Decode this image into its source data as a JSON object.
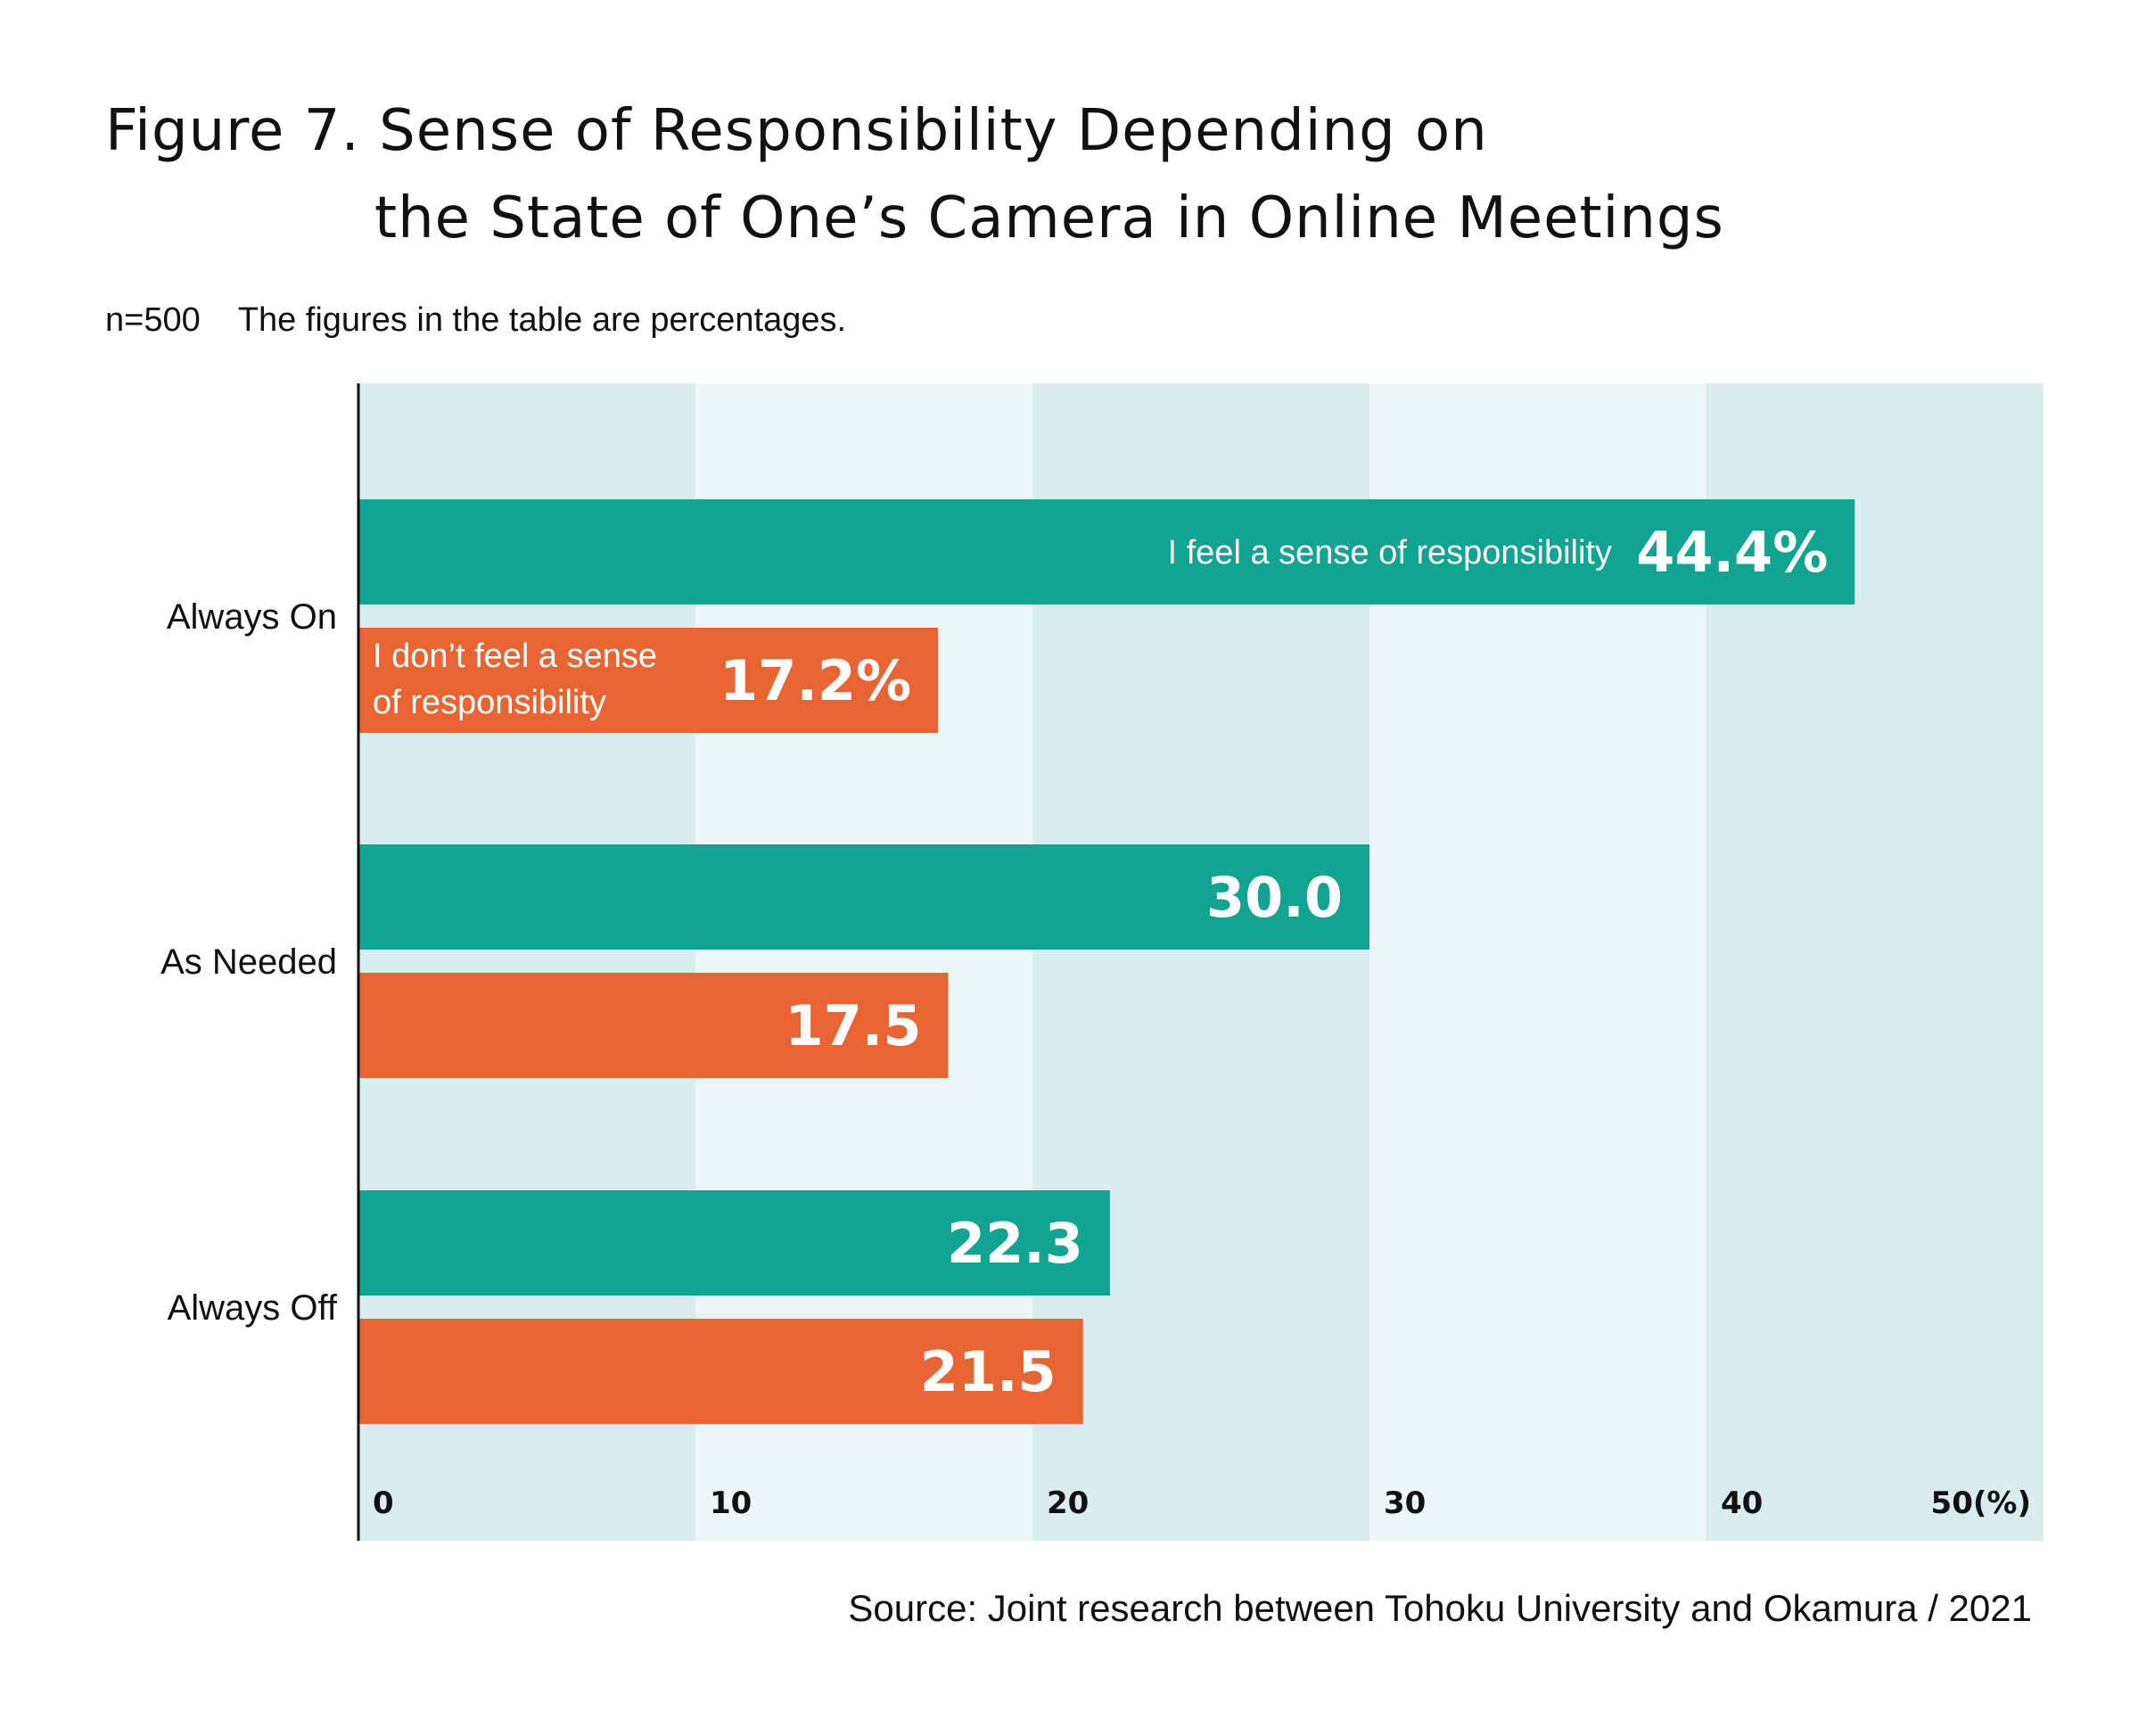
{
  "title": {
    "line1": "Figure 7. Sense of Responsibility Depending on",
    "line2": "the State of One’s Camera in Online Meetings"
  },
  "subtitle": {
    "n": "n=500",
    "note": "The figures in the table are percentages."
  },
  "source": "Source: Joint research between Tohoku University and Okamura / 2021",
  "colors": {
    "feel": "#12a490",
    "not_feel": "#e96433",
    "band_dark": "#daedee",
    "band_light": "#edf6f6",
    "axis": "#111111"
  },
  "chart_data": {
    "type": "bar",
    "orientation": "horizontal",
    "categories": [
      "Always On",
      "As Needed",
      "Always Off"
    ],
    "series": [
      {
        "name": "I feel a sense of responsibility",
        "values": [
          44.4,
          30.0,
          22.3
        ],
        "labels": [
          "44.4%",
          "30.0",
          "22.3"
        ]
      },
      {
        "name": "I don’t feel a sense of responsibility",
        "name_lines": [
          "I don’t feel a sense",
          "of responsibility"
        ],
        "values": [
          17.2,
          17.5,
          21.5
        ],
        "labels": [
          "17.2%",
          "17.5",
          "21.5"
        ]
      }
    ],
    "xlim": [
      0,
      50
    ],
    "xticks": [
      "0",
      "10",
      "20",
      "30",
      "40",
      "50(%)"
    ],
    "grid": "alternating vertical bands",
    "legend": "inline on Always On bars"
  }
}
